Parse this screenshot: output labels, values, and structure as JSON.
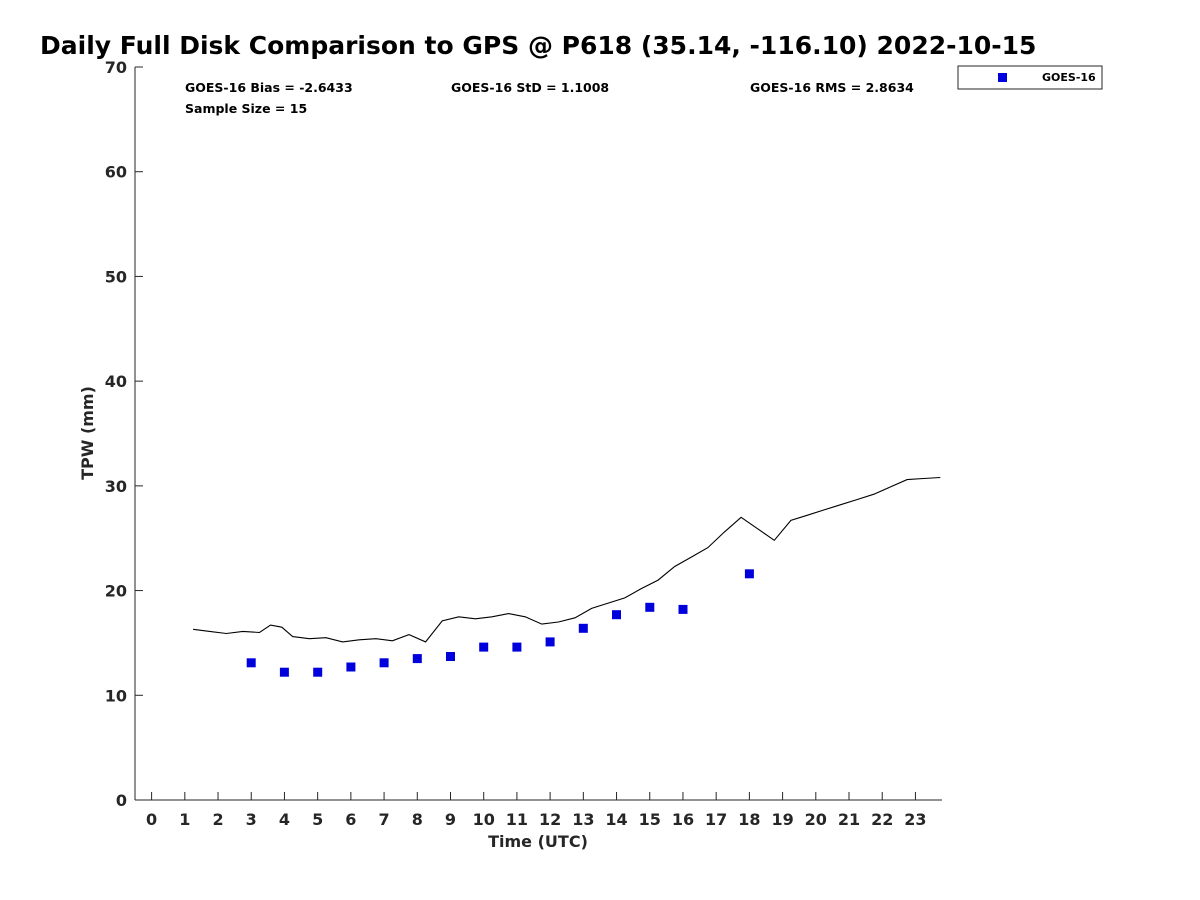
{
  "chart_data": {
    "type": "scatter",
    "title": "Daily Full Disk Comparison to GPS @ P618 (35.14, -116.10) 2022-10-15",
    "xlabel": "Time (UTC)",
    "ylabel": "TPW (mm)",
    "xlim": [
      -0.5,
      23.8
    ],
    "ylim": [
      0,
      70
    ],
    "x_ticks": [
      0,
      1,
      2,
      3,
      4,
      5,
      6,
      7,
      8,
      9,
      10,
      11,
      12,
      13,
      14,
      15,
      16,
      17,
      18,
      19,
      20,
      21,
      22,
      23
    ],
    "y_ticks": [
      0,
      10,
      20,
      30,
      40,
      50,
      60,
      70
    ],
    "grid": false,
    "legend_position": "top-right-outside",
    "stats": {
      "bias": "GOES-16 Bias = -2.6433",
      "std": "GOES-16 StD = 1.1008",
      "rms": "GOES-16 RMS = 2.8634",
      "sample_size": "Sample Size = 15"
    },
    "series": [
      {
        "name": "GOES-16",
        "kind": "markers",
        "color": "#0000dd",
        "x": [
          3,
          4,
          5,
          6,
          7,
          8,
          9,
          10,
          11,
          12,
          13,
          14,
          15,
          16,
          18
        ],
        "y": [
          13.1,
          12.2,
          12.2,
          12.7,
          13.1,
          13.5,
          13.7,
          14.6,
          14.6,
          15.1,
          16.4,
          17.7,
          18.4,
          18.2,
          21.6
        ]
      },
      {
        "kind": "line",
        "color": "#000000",
        "x": [
          1.25,
          1.75,
          2.25,
          2.75,
          3.25,
          3.58,
          3.92,
          4.25,
          4.75,
          5.25,
          5.75,
          6.25,
          6.75,
          7.25,
          7.75,
          8.25,
          8.75,
          9.25,
          9.75,
          10.25,
          10.75,
          11.25,
          11.75,
          12.25,
          12.75,
          13.25,
          13.75,
          14.25,
          14.75,
          15.25,
          15.75,
          16.25,
          16.75,
          17.25,
          17.75,
          18.25,
          18.75,
          19.25,
          19.75,
          20.25,
          20.75,
          21.25,
          21.75,
          22.25,
          22.75,
          23.25,
          23.75
        ],
        "y": [
          16.3,
          16.1,
          15.9,
          16.1,
          16.0,
          16.7,
          16.5,
          15.6,
          15.4,
          15.5,
          15.1,
          15.3,
          15.4,
          15.2,
          15.8,
          15.1,
          17.1,
          17.5,
          17.3,
          17.5,
          17.8,
          17.5,
          16.8,
          17.0,
          17.4,
          18.3,
          18.8,
          19.3,
          20.2,
          21.0,
          22.3,
          23.2,
          24.1,
          25.6,
          27.0,
          25.9,
          24.8,
          26.7,
          27.2,
          27.7,
          28.2,
          28.7,
          29.2,
          29.9,
          30.6,
          30.7,
          30.8
        ]
      }
    ]
  }
}
